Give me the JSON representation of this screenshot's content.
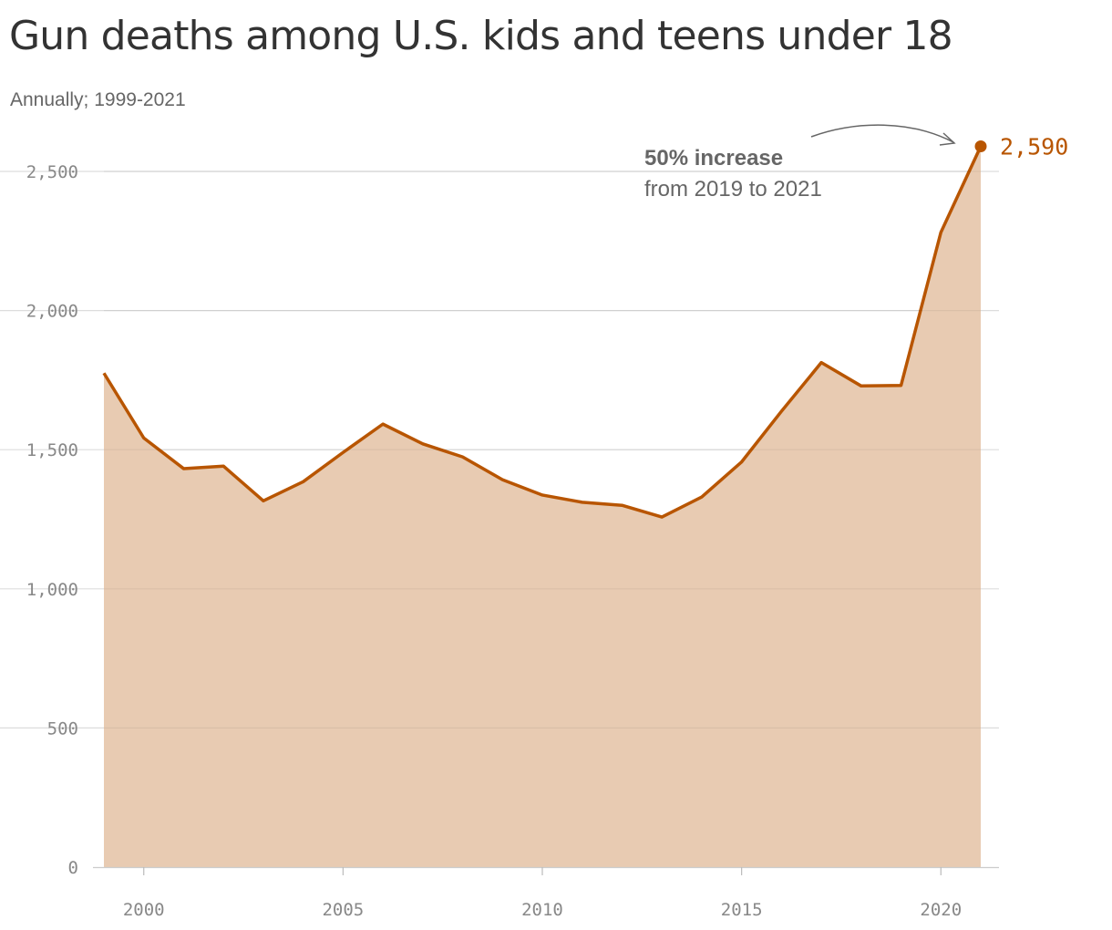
{
  "colors": {
    "line": "#b85500",
    "area": "#e8cbb2",
    "grid": "#dddddd",
    "tick_text": "#888888",
    "annotation_text": "#666666"
  },
  "chart_data": {
    "type": "area",
    "title": "Gun deaths among U.S. kids and teens under 18",
    "subtitle": "Annually; 1999-2021",
    "xlabel": "",
    "ylabel": "",
    "x": [
      1999,
      2000,
      2001,
      2002,
      2003,
      2004,
      2005,
      2006,
      2007,
      2008,
      2009,
      2010,
      2011,
      2012,
      2013,
      2014,
      2015,
      2016,
      2017,
      2018,
      2019,
      2020,
      2021
    ],
    "series": [
      {
        "values": [
          1775,
          1542,
          1432,
          1441,
          1316,
          1385,
          1490,
          1592,
          1521,
          1474,
          1392,
          1337,
          1311,
          1300,
          1258,
          1330,
          1456,
          1638,
          1813,
          1729,
          1731,
          2281,
          2590
        ]
      }
    ],
    "xlim": [
      1998.75,
      2021.5
    ],
    "ylim": [
      0,
      2500
    ],
    "y_ticks": [
      0,
      500,
      1000,
      1500,
      2000,
      2500
    ],
    "y_tick_labels": [
      "0",
      "500",
      "1,000",
      "1,500",
      "2,000",
      "2,500"
    ],
    "x_ticks": [
      2000,
      2005,
      2010,
      2015,
      2020
    ],
    "x_tick_labels": [
      "2000",
      "2005",
      "2010",
      "2015",
      "2020"
    ],
    "grid": true,
    "end_label": "2,590",
    "annotation": {
      "line1": "50% increase",
      "line2": "from 2019 to 2021"
    }
  }
}
